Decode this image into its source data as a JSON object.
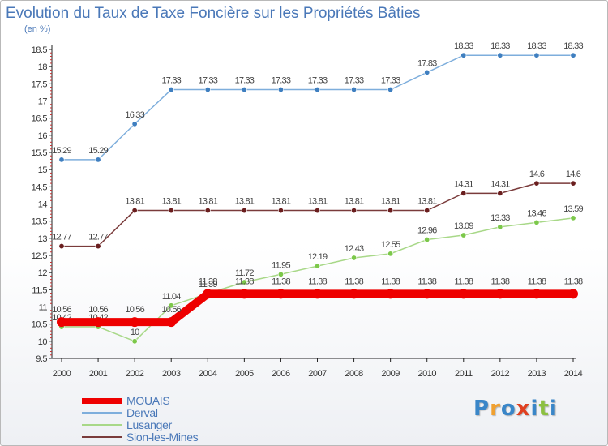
{
  "title": "Evolution du Taux de Taxe Foncière sur les Propriétés Bâties",
  "unit_label": "(en %)",
  "logo": {
    "letters": [
      "P",
      "r",
      "o",
      "x",
      "i",
      "t",
      "i"
    ],
    "colors": [
      "#3a86c8",
      "#f0a030",
      "#3a86c8",
      "#e04020",
      "#3a86c8",
      "#8cc040",
      "#3a86c8"
    ]
  },
  "chart_data": {
    "type": "line",
    "title": "Evolution du Taux de Taxe Foncière sur les Propriétés Bâties",
    "ylabel": "(en %)",
    "xlabel": "",
    "x": [
      "2000",
      "2001",
      "2002",
      "2003",
      "2004",
      "2005",
      "2006",
      "2007",
      "2008",
      "2009",
      "2010",
      "2011",
      "2012",
      "2013",
      "2014"
    ],
    "ylim": [
      9.5,
      18.5
    ],
    "yticks": [
      "9.5",
      "10",
      "10.5",
      "11",
      "11.5",
      "12",
      "12.5",
      "13",
      "13.5",
      "14",
      "14.5",
      "15",
      "15.5",
      "16",
      "16.5",
      "17",
      "17.5",
      "18",
      "18.5"
    ],
    "grid": false,
    "legend_position": "bottom-left",
    "series": [
      {
        "name": "Derval",
        "color": "#7eaedc",
        "marker": "#3f7fc0",
        "values": [
          15.29,
          15.29,
          16.33,
          17.33,
          17.33,
          17.33,
          17.33,
          17.33,
          17.33,
          17.33,
          17.83,
          18.33,
          18.33,
          18.33,
          18.33
        ],
        "labels": [
          "15.29",
          "15.29",
          "16.33",
          "17.33",
          "17.33",
          "17.33",
          "17.33",
          "17.33",
          "17.33",
          "17.33",
          "17.83",
          "18.33",
          "18.33",
          "18.33",
          "18.33"
        ]
      },
      {
        "name": "Sion-les-Mines",
        "color": "#7a3b3b",
        "marker": "#6a1e1e",
        "values": [
          12.77,
          12.77,
          13.81,
          13.81,
          13.81,
          13.81,
          13.81,
          13.81,
          13.81,
          13.81,
          13.81,
          14.31,
          14.31,
          14.6,
          14.6
        ],
        "labels": [
          "12.77",
          "12.77",
          "13.81",
          "13.81",
          "13.81",
          "13.81",
          "13.81",
          "13.81",
          "13.81",
          "13.81",
          "13.81",
          "14.31",
          "14.31",
          "14.6",
          "14.6"
        ]
      },
      {
        "name": "Lusanger",
        "color": "#a8d888",
        "marker": "#7cc84a",
        "values": [
          10.42,
          10.42,
          10,
          11.04,
          11.39,
          11.72,
          11.95,
          12.19,
          12.43,
          12.55,
          12.96,
          13.09,
          13.33,
          13.46,
          13.59
        ],
        "labels": [
          "10.42",
          "10.42",
          "10",
          "11.04",
          "11.39",
          "11.72",
          "11.95",
          "12.19",
          "12.43",
          "12.55",
          "12.96",
          "13.09",
          "13.33",
          "13.46",
          "13.59"
        ]
      },
      {
        "name": "MOUAIS",
        "color": "#ee0000",
        "marker": "#ee0000",
        "values": [
          10.56,
          10.56,
          10.56,
          10.56,
          11.38,
          11.38,
          11.38,
          11.38,
          11.38,
          11.38,
          11.38,
          11.38,
          11.38,
          11.38,
          11.38
        ],
        "labels": [
          "10.56",
          "10.56",
          "10.56",
          "10.56",
          "11.38",
          "11.38",
          "11.38",
          "11.38",
          "11.38",
          "11.38",
          "11.38",
          "11.38",
          "11.38",
          "11.38",
          "11.38"
        ]
      }
    ],
    "legend": [
      "MOUAIS",
      "Derval",
      "Lusanger",
      "Sion-les-Mines"
    ]
  }
}
